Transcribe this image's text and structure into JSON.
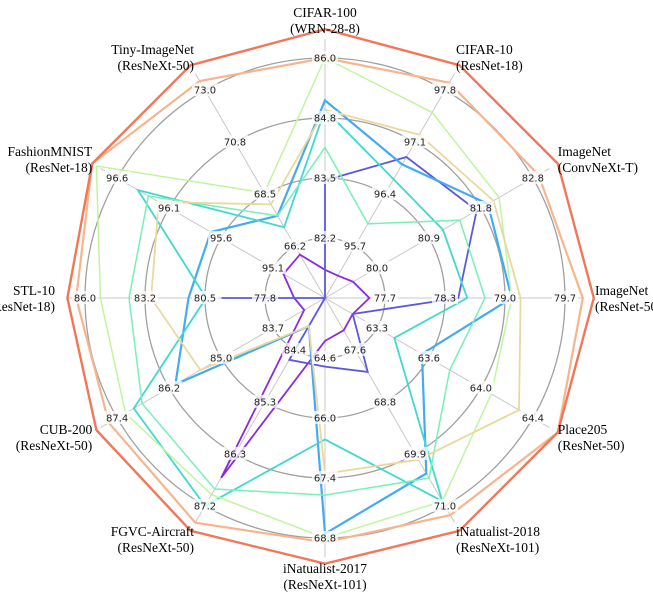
{
  "chart_data": {
    "type": "radar",
    "title": "",
    "grid": true,
    "legend": "none",
    "axes": [
      {
        "name": "CIFAR-100",
        "model": "(WRN-28-8)",
        "ticks": [
          "82.2",
          "83.5",
          "84.8",
          "86.0"
        ],
        "range": [
          80.9,
          86.0
        ]
      },
      {
        "name": "CIFAR-10",
        "model": "(ResNet-18)",
        "ticks": [
          "95.7",
          "96.4",
          "97.1",
          "97.8"
        ],
        "range": [
          95.0,
          97.8
        ]
      },
      {
        "name": "ImageNet",
        "model": "(ConvNeXt-T)",
        "ticks": [
          "80.0",
          "80.9",
          "81.8",
          "82.8"
        ],
        "range": [
          79.1,
          82.8
        ]
      },
      {
        "name": "ImageNet",
        "model": "(ResNet-50)",
        "ticks": [
          "77.7",
          "78.3",
          "79.0",
          "79.7"
        ],
        "range": [
          77.0,
          79.7
        ]
      },
      {
        "name": "Place205",
        "model": "(ResNet-50)",
        "ticks": [
          "63.3",
          "63.6",
          "64.0",
          "64.4"
        ],
        "range": [
          62.9,
          64.4
        ]
      },
      {
        "name": "iNatualist-2018",
        "model": "(ResNeXt-101)",
        "ticks": [
          "67.6",
          "68.8",
          "69.9",
          "71.0"
        ],
        "range": [
          66.5,
          71.0
        ]
      },
      {
        "name": "iNatualist-2017",
        "model": "(ResNeXt-101)",
        "ticks": [
          "64.6",
          "66.0",
          "67.4",
          "68.8"
        ],
        "range": [
          63.2,
          68.8
        ]
      },
      {
        "name": "FGVC-Aircraft",
        "model": "(ResNeXt-50)",
        "ticks": [
          "84.4",
          "85.3",
          "86.3",
          "87.2"
        ],
        "range": [
          83.5,
          87.2
        ]
      },
      {
        "name": "CUB-200",
        "model": "(ResNeXt-50)",
        "ticks": [
          "83.7",
          "85.0",
          "86.2",
          "87.4"
        ],
        "range": [
          82.4,
          87.4
        ]
      },
      {
        "name": "STL-10",
        "model": "(ResNet-18)",
        "ticks": [
          "77.8",
          "80.5",
          "83.2",
          "86.0"
        ],
        "range": [
          75.1,
          86.0
        ]
      },
      {
        "name": "FashionMNIST",
        "model": "(ResNet-18)",
        "ticks": [
          "95.1",
          "95.6",
          "96.1",
          "96.6"
        ],
        "range": [
          94.6,
          96.6
        ]
      },
      {
        "name": "Tiny-ImageNet",
        "model": "(ResNeXt-50)",
        "ticks": [
          "66.2",
          "68.5",
          "70.8",
          "73.0"
        ],
        "range": [
          63.9,
          73.0
        ]
      }
    ],
    "series": [
      {
        "color": "#8a2be2",
        "width": 1.8,
        "values": [
          81.5,
          95.3,
          79.6,
          77.5,
          63.1,
          67.2,
          64.2,
          86.7,
          82.9,
          76.5,
          95.0,
          65.8
        ]
      },
      {
        "color": "#5b58e0",
        "width": 1.8,
        "values": [
          83.4,
          96.9,
          81.8,
          78.5,
          63.1,
          68.1,
          64.8,
          84.6,
          82.4,
          79.8,
          94.5,
          63.9
        ]
      },
      {
        "color": "#45aaf0",
        "width": 2.2,
        "values": [
          85.1,
          96.8,
          82.0,
          79.1,
          63.6,
          70.3,
          68.7,
          84.0,
          86.0,
          81.3,
          95.7,
          67.5
        ]
      },
      {
        "color": "#40d8d0",
        "width": 1.8,
        "values": [
          84.9,
          96.6,
          81.2,
          78.6,
          63.4,
          70.9,
          66.5,
          87.2,
          87.0,
          80.5,
          96.4,
          67.0
        ]
      },
      {
        "color": "#78f0b8",
        "width": 1.5,
        "values": [
          84.1,
          96.0,
          81.5,
          78.8,
          63.8,
          70.4,
          67.8,
          86.9,
          86.8,
          84.0,
          96.3,
          67.5
        ]
      },
      {
        "color": "#c0f5a0",
        "width": 1.5,
        "values": [
          86.0,
          97.5,
          82.2,
          79.1,
          64.1,
          70.9,
          68.8,
          87.0,
          87.2,
          85.3,
          96.8,
          68.5
        ]
      },
      {
        "color": "#ead8a0",
        "width": 1.8,
        "values": [
          84.9,
          97.2,
          82.1,
          79.2,
          64.3,
          70.0,
          67.3,
          84.0,
          85.4,
          83.0,
          96.2,
          68.0
        ]
      },
      {
        "color": "#f8b48c",
        "width": 2.2,
        "values": [
          86.0,
          97.9,
          82.9,
          79.9,
          64.6,
          71.2,
          68.9,
          87.5,
          87.6,
          86.4,
          96.9,
          73.4
        ]
      },
      {
        "color": "#f07858",
        "width": 2.4,
        "values": [
          86.9,
          98.4,
          83.3,
          80.1,
          64.8,
          71.6,
          69.4,
          87.9,
          87.9,
          86.8,
          97.2,
          74.3
        ]
      }
    ]
  }
}
